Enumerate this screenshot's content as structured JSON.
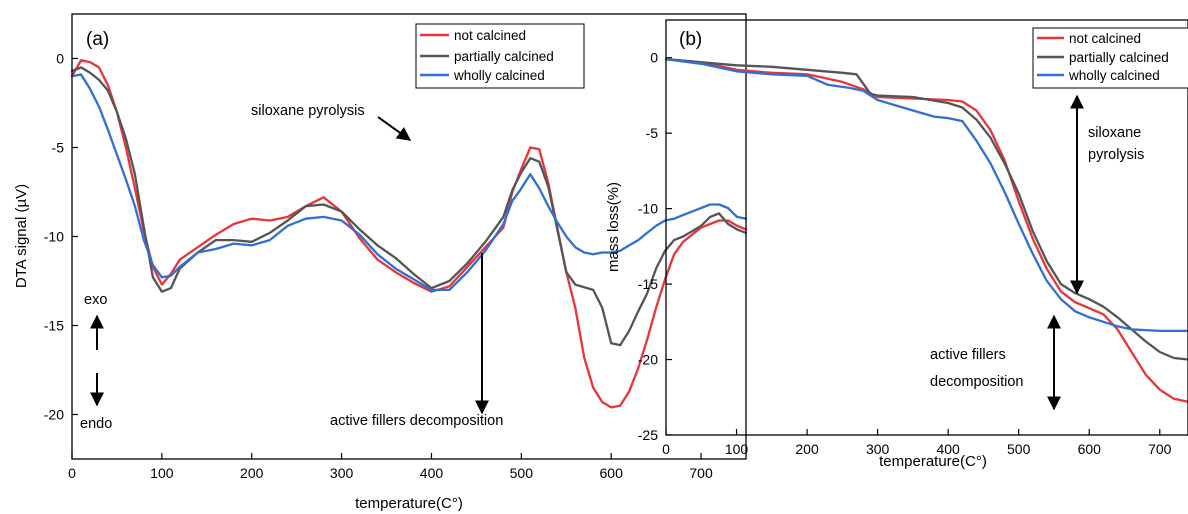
{
  "chart_data": [
    {
      "type": "line",
      "panel_label": "(a)",
      "xlabel": "temperature(C°)",
      "ylabel": "DTA signal (µV)",
      "xlim": [
        0,
        750
      ],
      "ylim": [
        -22.5,
        2.5
      ],
      "xticks": [
        0,
        100,
        200,
        300,
        400,
        500,
        600,
        700
      ],
      "yticks": [
        0,
        -5,
        -10,
        -15,
        -20
      ],
      "grid": false,
      "legend_position": "top-right",
      "series": [
        {
          "name": "not calcined",
          "color": "#e8343a",
          "points": [
            [
              0,
              -1.0
            ],
            [
              10,
              -0.1
            ],
            [
              20,
              -0.2
            ],
            [
              30,
              -0.5
            ],
            [
              40,
              -1.5
            ],
            [
              50,
              -3.0
            ],
            [
              60,
              -5.0
            ],
            [
              70,
              -7.3
            ],
            [
              80,
              -9.7
            ],
            [
              90,
              -11.7
            ],
            [
              100,
              -12.7
            ],
            [
              110,
              -12.1
            ],
            [
              120,
              -11.3
            ],
            [
              140,
              -10.6
            ],
            [
              160,
              -9.9
            ],
            [
              180,
              -9.3
            ],
            [
              200,
              -9.0
            ],
            [
              220,
              -9.1
            ],
            [
              240,
              -8.9
            ],
            [
              260,
              -8.3
            ],
            [
              280,
              -7.8
            ],
            [
              300,
              -8.6
            ],
            [
              320,
              -10.1
            ],
            [
              340,
              -11.3
            ],
            [
              360,
              -12.0
            ],
            [
              380,
              -12.6
            ],
            [
              400,
              -13.1
            ],
            [
              420,
              -12.8
            ],
            [
              440,
              -11.7
            ],
            [
              460,
              -10.6
            ],
            [
              480,
              -9.5
            ],
            [
              490,
              -7.5
            ],
            [
              500,
              -6.2
            ],
            [
              510,
              -5.0
            ],
            [
              520,
              -5.1
            ],
            [
              530,
              -7.0
            ],
            [
              540,
              -9.5
            ],
            [
              550,
              -12.0
            ],
            [
              560,
              -14.0
            ],
            [
              570,
              -16.8
            ],
            [
              580,
              -18.5
            ],
            [
              590,
              -19.3
            ],
            [
              600,
              -19.6
            ],
            [
              610,
              -19.5
            ],
            [
              620,
              -18.7
            ],
            [
              630,
              -17.4
            ],
            [
              640,
              -15.8
            ],
            [
              650,
              -14.0
            ],
            [
              660,
              -12.4
            ],
            [
              670,
              -11.0
            ],
            [
              680,
              -10.3
            ],
            [
              690,
              -9.9
            ],
            [
              700,
              -9.5
            ],
            [
              710,
              -9.3
            ],
            [
              720,
              -9.1
            ],
            [
              730,
              -9.1
            ],
            [
              740,
              -9.4
            ],
            [
              750,
              -9.6
            ]
          ]
        },
        {
          "name": "partially calcined",
          "color": "#555555",
          "points": [
            [
              0,
              -0.7
            ],
            [
              10,
              -0.5
            ],
            [
              20,
              -0.8
            ],
            [
              30,
              -1.2
            ],
            [
              40,
              -1.8
            ],
            [
              50,
              -3.0
            ],
            [
              60,
              -4.5
            ],
            [
              70,
              -6.5
            ],
            [
              80,
              -9.5
            ],
            [
              90,
              -12.3
            ],
            [
              100,
              -13.1
            ],
            [
              110,
              -12.9
            ],
            [
              120,
              -11.8
            ],
            [
              140,
              -10.9
            ],
            [
              160,
              -10.2
            ],
            [
              180,
              -10.2
            ],
            [
              200,
              -10.3
            ],
            [
              220,
              -9.8
            ],
            [
              240,
              -9.1
            ],
            [
              260,
              -8.3
            ],
            [
              280,
              -8.2
            ],
            [
              300,
              -8.6
            ],
            [
              320,
              -9.6
            ],
            [
              340,
              -10.5
            ],
            [
              360,
              -11.2
            ],
            [
              380,
              -12.1
            ],
            [
              400,
              -12.9
            ],
            [
              420,
              -12.5
            ],
            [
              440,
              -11.5
            ],
            [
              460,
              -10.3
            ],
            [
              480,
              -8.9
            ],
            [
              490,
              -7.4
            ],
            [
              500,
              -6.4
            ],
            [
              510,
              -5.6
            ],
            [
              520,
              -5.8
            ],
            [
              530,
              -7.2
            ],
            [
              540,
              -9.6
            ],
            [
              550,
              -12.0
            ],
            [
              560,
              -12.7
            ],
            [
              580,
              -13.0
            ],
            [
              590,
              -14.0
            ],
            [
              600,
              -16.0
            ],
            [
              610,
              -16.1
            ],
            [
              620,
              -15.3
            ],
            [
              630,
              -14.2
            ],
            [
              640,
              -13.2
            ],
            [
              650,
              -11.8
            ],
            [
              660,
              -10.8
            ],
            [
              670,
              -10.2
            ],
            [
              680,
              -10.0
            ],
            [
              690,
              -9.7
            ],
            [
              700,
              -9.4
            ],
            [
              710,
              -8.9
            ],
            [
              720,
              -8.7
            ],
            [
              730,
              -9.3
            ],
            [
              740,
              -9.6
            ],
            [
              750,
              -9.8
            ]
          ]
        },
        {
          "name": "wholly calcined",
          "color": "#2f6fd6",
          "points": [
            [
              0,
              -1.0
            ],
            [
              10,
              -0.9
            ],
            [
              20,
              -1.7
            ],
            [
              30,
              -2.7
            ],
            [
              40,
              -4.0
            ],
            [
              50,
              -5.4
            ],
            [
              60,
              -6.8
            ],
            [
              70,
              -8.3
            ],
            [
              80,
              -10.2
            ],
            [
              90,
              -11.6
            ],
            [
              100,
              -12.3
            ],
            [
              110,
              -12.2
            ],
            [
              120,
              -11.7
            ],
            [
              140,
              -10.9
            ],
            [
              160,
              -10.7
            ],
            [
              180,
              -10.4
            ],
            [
              200,
              -10.5
            ],
            [
              220,
              -10.2
            ],
            [
              240,
              -9.4
            ],
            [
              260,
              -9.0
            ],
            [
              280,
              -8.9
            ],
            [
              300,
              -9.1
            ],
            [
              320,
              -9.9
            ],
            [
              340,
              -11.0
            ],
            [
              360,
              -11.8
            ],
            [
              380,
              -12.4
            ],
            [
              400,
              -13.0
            ],
            [
              420,
              -13.0
            ],
            [
              440,
              -12.0
            ],
            [
              460,
              -10.8
            ],
            [
              480,
              -9.3
            ],
            [
              490,
              -8.0
            ],
            [
              500,
              -7.3
            ],
            [
              510,
              -6.5
            ],
            [
              520,
              -7.3
            ],
            [
              530,
              -8.3
            ],
            [
              540,
              -9.2
            ],
            [
              550,
              -10.0
            ],
            [
              560,
              -10.6
            ],
            [
              570,
              -10.9
            ],
            [
              580,
              -11.0
            ],
            [
              590,
              -10.9
            ],
            [
              600,
              -10.9
            ],
            [
              610,
              -10.8
            ],
            [
              620,
              -10.5
            ],
            [
              630,
              -10.2
            ],
            [
              640,
              -9.8
            ],
            [
              650,
              -9.4
            ],
            [
              660,
              -9.1
            ],
            [
              670,
              -9.0
            ],
            [
              680,
              -8.8
            ],
            [
              690,
              -8.6
            ],
            [
              700,
              -8.4
            ],
            [
              710,
              -8.2
            ],
            [
              720,
              -8.2
            ],
            [
              730,
              -8.4
            ],
            [
              740,
              -8.9
            ],
            [
              750,
              -9.0
            ]
          ]
        }
      ],
      "annotations": {
        "siloxane": "siloxane pyrolysis",
        "active": "active fillers decomposition",
        "exo": "exo",
        "endo": "endo"
      }
    },
    {
      "type": "line",
      "panel_label": "(b)",
      "xlabel": "temperature(C°)",
      "ylabel": "mass loss(%)",
      "xlim": [
        0,
        740
      ],
      "ylim": [
        -25,
        2.5
      ],
      "xticks": [
        0,
        100,
        200,
        300,
        400,
        500,
        600,
        700
      ],
      "yticks": [
        0,
        -5,
        -10,
        -15,
        -20,
        -25
      ],
      "grid": false,
      "legend_position": "top-right",
      "series": [
        {
          "name": "not calcined",
          "color": "#e8343a",
          "points": [
            [
              0,
              -0.1
            ],
            [
              50,
              -0.3
            ],
            [
              100,
              -0.8
            ],
            [
              150,
              -1.0
            ],
            [
              200,
              -1.1
            ],
            [
              250,
              -1.6
            ],
            [
              280,
              -2.1
            ],
            [
              300,
              -2.6
            ],
            [
              350,
              -2.7
            ],
            [
              400,
              -2.8
            ],
            [
              420,
              -2.9
            ],
            [
              440,
              -3.5
            ],
            [
              460,
              -4.8
            ],
            [
              480,
              -6.8
            ],
            [
              500,
              -9.5
            ],
            [
              520,
              -12.0
            ],
            [
              540,
              -14.0
            ],
            [
              560,
              -15.5
            ],
            [
              580,
              -16.2
            ],
            [
              600,
              -16.6
            ],
            [
              620,
              -17.0
            ],
            [
              640,
              -18.0
            ],
            [
              660,
              -19.5
            ],
            [
              680,
              -21.0
            ],
            [
              700,
              -22.0
            ],
            [
              720,
              -22.6
            ],
            [
              740,
              -22.8
            ]
          ]
        },
        {
          "name": "partially calcined",
          "color": "#555555",
          "points": [
            [
              0,
              -0.1
            ],
            [
              50,
              -0.3
            ],
            [
              100,
              -0.5
            ],
            [
              150,
              -0.6
            ],
            [
              200,
              -0.8
            ],
            [
              250,
              -1.0
            ],
            [
              270,
              -1.1
            ],
            [
              290,
              -2.4
            ],
            [
              300,
              -2.5
            ],
            [
              350,
              -2.6
            ],
            [
              400,
              -3.0
            ],
            [
              420,
              -3.3
            ],
            [
              440,
              -4.1
            ],
            [
              460,
              -5.3
            ],
            [
              480,
              -7.0
            ],
            [
              500,
              -9.0
            ],
            [
              520,
              -11.5
            ],
            [
              540,
              -13.5
            ],
            [
              560,
              -15.0
            ],
            [
              580,
              -15.6
            ],
            [
              600,
              -16.0
            ],
            [
              620,
              -16.5
            ],
            [
              640,
              -17.2
            ],
            [
              660,
              -18.0
            ],
            [
              680,
              -18.8
            ],
            [
              700,
              -19.5
            ],
            [
              720,
              -19.9
            ],
            [
              740,
              -20.0
            ]
          ]
        },
        {
          "name": "wholly calcined",
          "color": "#2f6fd6",
          "points": [
            [
              0,
              -0.1
            ],
            [
              50,
              -0.4
            ],
            [
              100,
              -0.9
            ],
            [
              150,
              -1.1
            ],
            [
              200,
              -1.2
            ],
            [
              230,
              -1.8
            ],
            [
              260,
              -2.0
            ],
            [
              280,
              -2.2
            ],
            [
              300,
              -2.8
            ],
            [
              350,
              -3.5
            ],
            [
              380,
              -3.9
            ],
            [
              400,
              -4.0
            ],
            [
              420,
              -4.2
            ],
            [
              440,
              -5.5
            ],
            [
              460,
              -7.0
            ],
            [
              480,
              -8.9
            ],
            [
              500,
              -11.0
            ],
            [
              520,
              -13.0
            ],
            [
              540,
              -14.8
            ],
            [
              560,
              -16.0
            ],
            [
              580,
              -16.8
            ],
            [
              600,
              -17.2
            ],
            [
              620,
              -17.5
            ],
            [
              640,
              -17.8
            ],
            [
              660,
              -18.0
            ],
            [
              700,
              -18.1
            ],
            [
              740,
              -18.1
            ]
          ]
        }
      ],
      "annotations": {
        "siloxane_line1": "siloxane",
        "siloxane_line2": "pyrolysis",
        "active_line1": "active fillers",
        "active_line2": "decomposition"
      }
    }
  ]
}
